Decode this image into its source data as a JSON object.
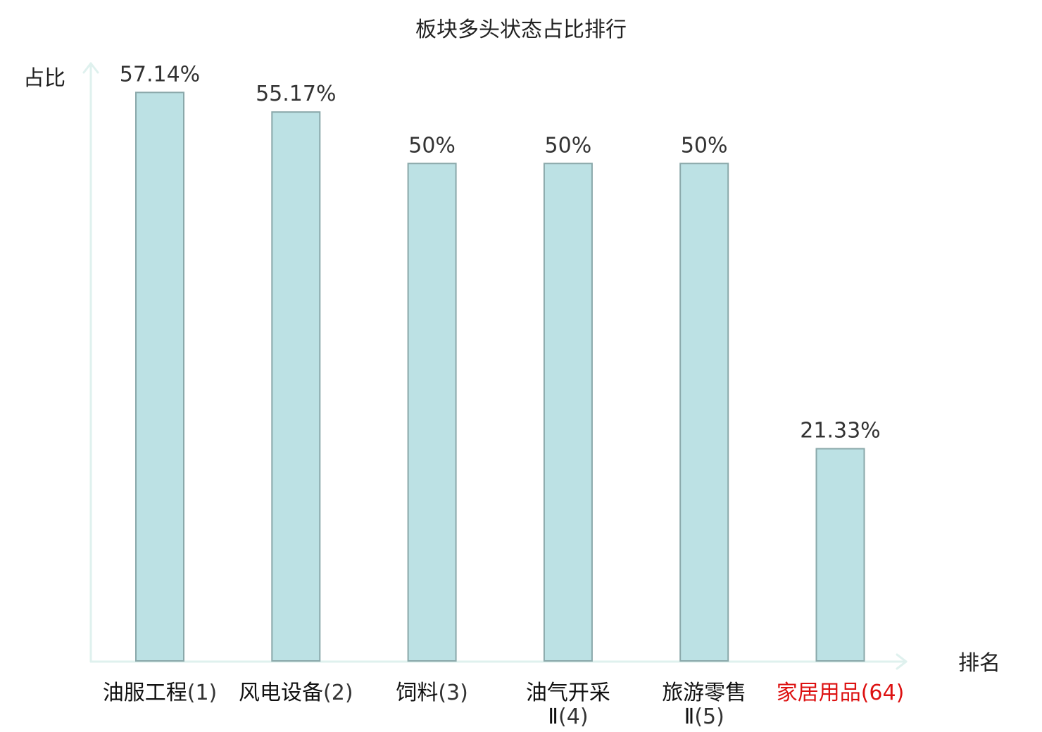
{
  "chart_data": {
    "type": "bar",
    "title": "板块多头状态占比排行",
    "ylabel": "占比",
    "xlabel": "排名",
    "ylim": [
      0,
      60
    ],
    "grid": false,
    "categories": [
      {
        "name_lines": [
          "油服工程"
        ],
        "rank": "(1)",
        "highlight": false
      },
      {
        "name_lines": [
          "风电设备"
        ],
        "rank": "(2)",
        "highlight": false
      },
      {
        "name_lines": [
          "饲料"
        ],
        "rank": "(3)",
        "highlight": false
      },
      {
        "name_lines": [
          "油气开采",
          "Ⅱ"
        ],
        "rank": "(4)",
        "highlight": false
      },
      {
        "name_lines": [
          "旅游零售",
          "Ⅱ"
        ],
        "rank": "(5)",
        "highlight": false
      },
      {
        "name_lines": [
          "家居用品"
        ],
        "rank": "(64)",
        "highlight": true
      }
    ],
    "values": [
      57.14,
      55.17,
      50,
      50,
      50,
      21.33
    ],
    "value_labels": [
      "57.14%",
      "55.17%",
      "50%",
      "50%",
      "50%",
      "21.33%"
    ]
  },
  "colors": {
    "bar_fill": "#bce1e4",
    "bar_stroke": "#8aa8aa",
    "axis": "#dff1ee",
    "highlight": "#dd1111"
  }
}
